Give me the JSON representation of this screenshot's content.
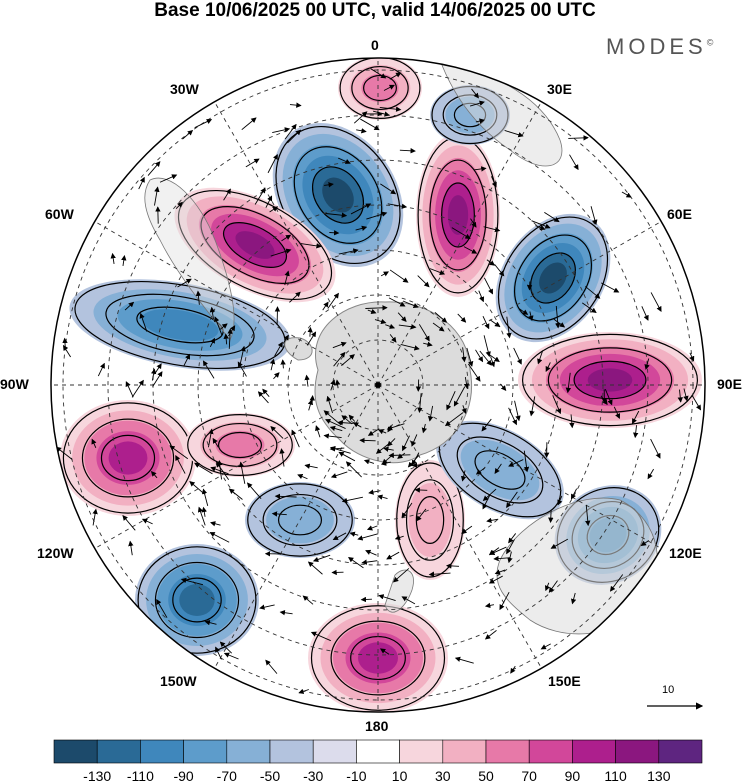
{
  "title": "Base 10/06/2025 00 UTC, valid 14/06/2025 00 UTC",
  "brand": "MODES",
  "brand_mark": "©",
  "map": {
    "projection": "south polar stereographic",
    "longitude_labels": {
      "top": "0",
      "top_right": "30E",
      "upper_right": "60E",
      "right": "90E",
      "lower_right": "120E",
      "bottom_right": "150E",
      "bottom": "180",
      "bottom_left": "150W",
      "lower_left": "120W",
      "left": "90W",
      "upper_left": "60W",
      "top_left": "30W"
    },
    "vector_scale_label": "10"
  },
  "colorbar": {
    "ticks": [
      "-130",
      "-110",
      "-90",
      "-70",
      "-50",
      "-30",
      "-10",
      "10",
      "30",
      "50",
      "70",
      "90",
      "110",
      "130"
    ],
    "colors": [
      "#1c4a6b",
      "#2a6a96",
      "#3f87bc",
      "#5d9ccb",
      "#86b0d6",
      "#b3c3de",
      "#dcdcec",
      "#ffffff",
      "#f7d6dd",
      "#f2b0c2",
      "#e779a8",
      "#d2479a",
      "#ad1f8d",
      "#8b177f",
      "#5e2580"
    ]
  },
  "features": {
    "anomaly_centers": [
      {
        "sign": "negative",
        "colors": [
          "#b3c3de",
          "#86b0d6",
          "#5d9ccb",
          "#3f87bc",
          "#2a6a96",
          "#1c4a6b"
        ]
      },
      {
        "sign": "positive",
        "colors": [
          "#f7d6dd",
          "#f2b0c2",
          "#e779a8",
          "#d2479a",
          "#ad1f8d",
          "#8b177f"
        ]
      }
    ],
    "land_color": "#dcdcdc"
  }
}
